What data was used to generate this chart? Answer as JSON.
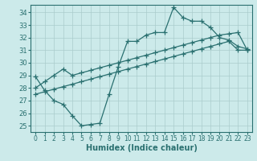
{
  "xlabel": "Humidex (Indice chaleur)",
  "bg_color": "#cceaea",
  "grid_color": "#aacccc",
  "line_color": "#2a7070",
  "xlim": [
    -0.5,
    23.5
  ],
  "ylim": [
    24.5,
    34.6
  ],
  "xticks": [
    0,
    1,
    2,
    3,
    4,
    5,
    6,
    7,
    8,
    9,
    10,
    11,
    12,
    13,
    14,
    15,
    16,
    17,
    18,
    19,
    20,
    21,
    22,
    23
  ],
  "yticks": [
    25,
    26,
    27,
    28,
    29,
    30,
    31,
    32,
    33,
    34
  ],
  "line1_x": [
    0,
    1,
    2,
    3,
    4,
    5,
    6,
    7,
    8,
    9,
    10,
    11,
    12,
    13,
    14,
    15,
    16,
    17,
    18,
    19,
    20,
    21,
    22,
    23
  ],
  "line1_y": [
    28.9,
    27.8,
    27.0,
    26.7,
    25.8,
    25.0,
    25.1,
    25.2,
    27.5,
    29.7,
    31.7,
    31.7,
    32.2,
    32.4,
    32.4,
    34.4,
    33.6,
    33.3,
    33.3,
    32.8,
    32.0,
    31.8,
    31.3,
    31.1
  ],
  "line2_x": [
    0,
    1,
    2,
    3,
    4,
    5,
    6,
    7,
    8,
    9,
    10,
    11,
    12,
    13,
    14,
    15,
    16,
    17,
    18,
    19,
    20,
    21,
    22,
    23
  ],
  "line2_y": [
    28.0,
    28.5,
    29.0,
    29.5,
    29.0,
    29.2,
    29.4,
    29.6,
    29.8,
    30.0,
    30.2,
    30.4,
    30.6,
    30.8,
    31.0,
    31.2,
    31.4,
    31.6,
    31.8,
    32.0,
    32.2,
    32.3,
    32.4,
    31.0
  ],
  "line3_x": [
    0,
    1,
    2,
    3,
    4,
    5,
    6,
    7,
    8,
    9,
    10,
    11,
    12,
    13,
    14,
    15,
    16,
    17,
    18,
    19,
    20,
    21,
    22,
    23
  ],
  "line3_y": [
    27.5,
    27.7,
    27.9,
    28.1,
    28.3,
    28.5,
    28.7,
    28.9,
    29.1,
    29.3,
    29.5,
    29.7,
    29.9,
    30.1,
    30.3,
    30.5,
    30.7,
    30.9,
    31.1,
    31.3,
    31.5,
    31.7,
    31.0,
    31.0
  ]
}
